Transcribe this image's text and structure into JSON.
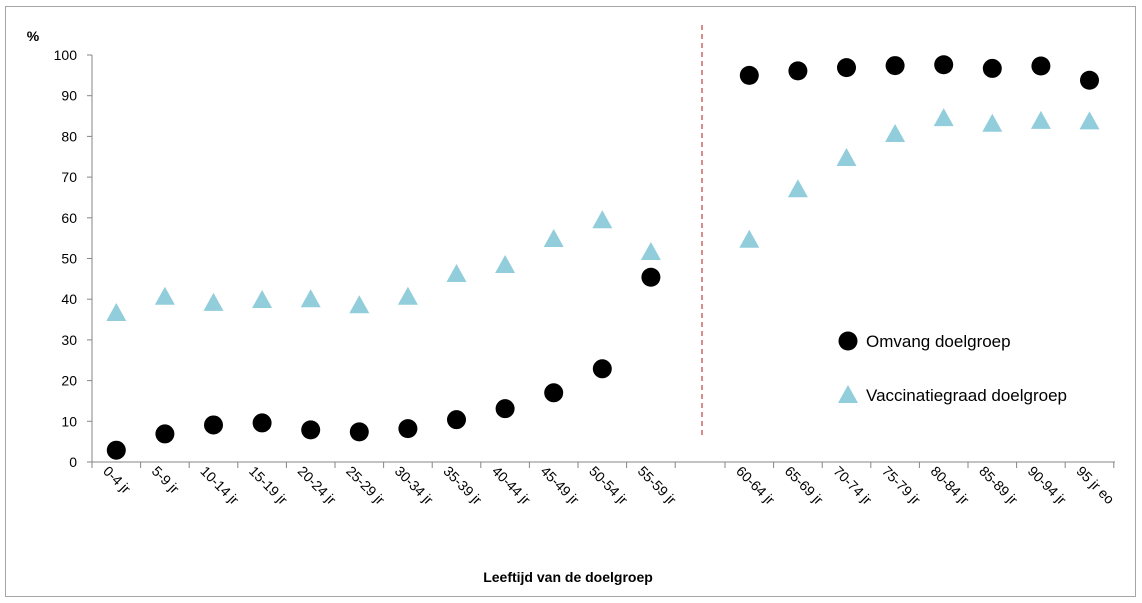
{
  "chart_data": {
    "type": "scatter",
    "title": "",
    "ylabel": "%",
    "xlabel": "Leeftijd van de doelgroep",
    "ylim": [
      0,
      100
    ],
    "yticks": [
      0,
      10,
      20,
      30,
      40,
      50,
      60,
      70,
      80,
      90,
      100
    ],
    "grid": false,
    "legend_position": "right",
    "groups": [
      {
        "categories": [
          "0-4 jr",
          "5-9 jr",
          "10-14 jr",
          "15-19 jr",
          "20-24 jr",
          "25-29 jr",
          "30-34 jr",
          "35-39 jr",
          "40-44 jr",
          "45-49 jr",
          "50-54 jr",
          "55-59 jr"
        ],
        "series": [
          {
            "name": "Omvang doelgroep",
            "values": [
              2.9,
              6.9,
              9.1,
              9.6,
              7.9,
              7.4,
              8.2,
              10.4,
              13.1,
              17.0,
              22.9,
              45.4
            ]
          },
          {
            "name": "Vaccinatiegraad doelgroep",
            "values": [
              36.6,
              40.6,
              39.1,
              39.8,
              40.0,
              38.5,
              40.6,
              46.2,
              48.4,
              54.8,
              59.4,
              51.6
            ]
          }
        ]
      },
      {
        "categories": [
          "60-64 jr",
          "65-69 jr",
          "70-74 jr",
          "75-79 jr",
          "80-84 jr",
          "85-89 jr",
          "90-94 jr",
          "95 jr eo"
        ],
        "series": [
          {
            "name": "Omvang doelgroep",
            "values": [
              95.0,
              96.1,
              96.9,
              97.4,
              97.6,
              96.7,
              97.3,
              93.8
            ]
          },
          {
            "name": "Vaccinatiegraad doelgroep",
            "values": [
              54.6,
              67.0,
              74.7,
              80.6,
              84.5,
              83.1,
              83.8,
              83.7
            ]
          }
        ]
      }
    ],
    "legend": [
      {
        "name": "Omvang doelgroep",
        "marker": "circle",
        "color": "#000000"
      },
      {
        "name": "Vaccinatiegraad doelgroep",
        "marker": "triangle",
        "color": "#92cddc"
      }
    ],
    "colors": {
      "omvang": "#000000",
      "vaccinatie": "#92cddc",
      "divider": "#c0504d",
      "axis": "#868686"
    }
  }
}
